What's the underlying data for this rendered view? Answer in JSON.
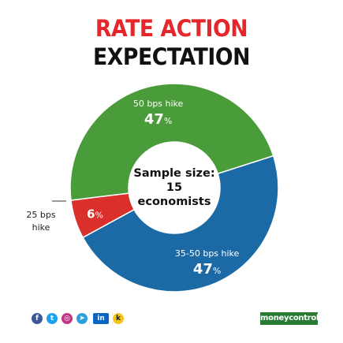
{
  "title": {
    "line1": "RATE ACTION",
    "line2": "EXPECTATION"
  },
  "center_label": {
    "line1": "Sample size:",
    "line2": "15",
    "line3": "economists"
  },
  "chart_data": {
    "type": "pie",
    "donut": true,
    "title": "RATE ACTION EXPECTATION",
    "slices": [
      {
        "label": "50 bps hike",
        "value": 47,
        "display": "47",
        "unit": "%",
        "color": "#4a9b3a"
      },
      {
        "label": "35-50 bps hike",
        "value": 47,
        "display": "47",
        "unit": "%",
        "color": "#1b6aa5"
      },
      {
        "label": "25 bps hike",
        "value": 6,
        "display": "6",
        "unit": "%",
        "color": "#d9302b"
      }
    ],
    "outside_label": {
      "line1": "25 bps",
      "line2": "hike"
    }
  },
  "footer": {
    "social_icons": [
      "facebook-icon",
      "twitter-icon",
      "instagram-icon",
      "telegram-icon",
      "linkedin-icon",
      "koo-icon"
    ],
    "brand": "moneycontrol",
    "brand_color": "#2a7a36"
  }
}
